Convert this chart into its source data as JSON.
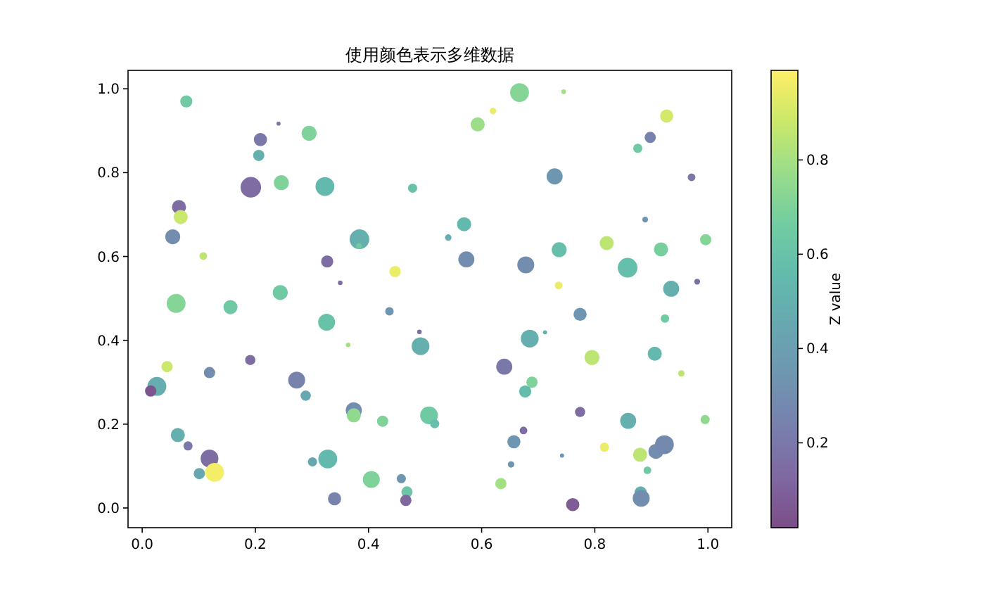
{
  "chart_data": {
    "type": "bubble",
    "title": "使用颜色表示多维数据",
    "clabel": "Z value",
    "xlim": [
      -0.025,
      1.042
    ],
    "ylim": [
      -0.047,
      1.044
    ],
    "xticks": [
      {
        "value": 0,
        "label": "0.0"
      },
      0.2,
      0.4,
      0.6,
      0.8,
      {
        "value": 1,
        "label": "1.0"
      }
    ],
    "yticks": [
      {
        "value": 0,
        "label": "0.0"
      },
      0.2,
      0.4,
      0.6,
      0.8,
      {
        "value": 1,
        "label": "1.0"
      }
    ],
    "clim": [
      0.02,
      0.99
    ],
    "cticks": [
      0.2,
      0.4,
      0.6,
      0.8
    ],
    "x": [
      0.078,
      0.241,
      0.209,
      0.295,
      0.206,
      0.192,
      0.246,
      0.323,
      0.478,
      0.065,
      0.068,
      0.054,
      0.384,
      0.383,
      0.108,
      0.327,
      0.447,
      0.35,
      0.06,
      0.156,
      0.244,
      0.667,
      0.745,
      0.62,
      0.593,
      0.927,
      0.898,
      0.876,
      0.729,
      0.971,
      0.569,
      0.541,
      0.889,
      0.573,
      0.678,
      0.737,
      0.821,
      0.917,
      0.996,
      0.858,
      0.736,
      0.935,
      0.981,
      0.437,
      0.326,
      0.364,
      0.49,
      0.492,
      0.044,
      0.191,
      0.119,
      0.026,
      0.015,
      0.273,
      0.289,
      0.374,
      0.374,
      0.425,
      0.507,
      0.517,
      0.063,
      0.081,
      0.119,
      0.328,
      0.301,
      0.101,
      0.128,
      0.405,
      0.458,
      0.468,
      0.466,
      0.34,
      0.774,
      0.924,
      0.685,
      0.712,
      0.795,
      0.906,
      0.953,
      0.64,
      0.689,
      0.677,
      0.774,
      0.859,
      0.995,
      0.674,
      0.657,
      0.742,
      0.817,
      0.88,
      0.908,
      0.923,
      0.652,
      0.893,
      0.634,
      0.881,
      0.882,
      0.761
    ],
    "values": [
      0.97,
      0.917,
      0.879,
      0.894,
      0.841,
      0.765,
      0.776,
      0.767,
      0.763,
      0.718,
      0.694,
      0.647,
      0.641,
      0.625,
      0.601,
      0.588,
      0.564,
      0.537,
      0.488,
      0.479,
      0.514,
      0.991,
      0.993,
      0.947,
      0.915,
      0.935,
      0.884,
      0.858,
      0.791,
      0.789,
      0.677,
      0.645,
      0.688,
      0.593,
      0.58,
      0.616,
      0.632,
      0.617,
      0.64,
      0.573,
      0.531,
      0.523,
      0.54,
      0.469,
      0.443,
      0.389,
      0.42,
      0.386,
      0.337,
      0.353,
      0.323,
      0.29,
      0.279,
      0.305,
      0.268,
      0.233,
      0.221,
      0.207,
      0.221,
      0.201,
      0.174,
      0.148,
      0.118,
      0.117,
      0.11,
      0.082,
      0.085,
      0.068,
      0.07,
      0.038,
      0.018,
      0.022,
      0.462,
      0.452,
      0.404,
      0.419,
      0.359,
      0.368,
      0.321,
      0.337,
      0.3,
      0.278,
      0.229,
      0.208,
      0.211,
      0.185,
      0.158,
      0.125,
      0.145,
      0.127,
      0.135,
      0.151,
      0.104,
      0.09,
      0.058,
      0.037,
      0.023,
      0.008
    ],
    "sizes": [
      0.35,
      0.04,
      0.41,
      0.53,
      0.3,
      1.0,
      0.53,
      0.84,
      0.2,
      0.47,
      0.47,
      0.53,
      0.92,
      0.08,
      0.14,
      0.35,
      0.3,
      0.05,
      0.84,
      0.47,
      0.53,
      0.84,
      0.05,
      0.1,
      0.47,
      0.41,
      0.3,
      0.2,
      0.61,
      0.14,
      0.47,
      0.1,
      0.08,
      0.61,
      0.68,
      0.53,
      0.47,
      0.47,
      0.3,
      0.92,
      0.14,
      0.61,
      0.08,
      0.17,
      0.68,
      0.05,
      0.05,
      0.75,
      0.3,
      0.25,
      0.3,
      0.84,
      0.3,
      0.68,
      0.25,
      0.61,
      0.47,
      0.3,
      0.75,
      0.2,
      0.47,
      0.2,
      0.75,
      0.84,
      0.2,
      0.3,
      0.84,
      0.68,
      0.2,
      0.3,
      0.3,
      0.41,
      0.41,
      0.17,
      0.75,
      0.04,
      0.53,
      0.47,
      0.1,
      0.61,
      0.3,
      0.35,
      0.25,
      0.61,
      0.2,
      0.14,
      0.41,
      0.04,
      0.2,
      0.47,
      0.53,
      0.84,
      0.1,
      0.14,
      0.3,
      0.35,
      0.68,
      0.41
    ],
    "cvalues": [
      0.65,
      0.2,
      0.2,
      0.7,
      0.5,
      0.15,
      0.7,
      0.55,
      0.6,
      0.15,
      0.88,
      0.3,
      0.5,
      0.65,
      0.85,
      0.15,
      0.95,
      0.15,
      0.72,
      0.65,
      0.65,
      0.72,
      0.8,
      0.95,
      0.78,
      0.9,
      0.25,
      0.65,
      0.35,
      0.2,
      0.55,
      0.5,
      0.35,
      0.3,
      0.3,
      0.58,
      0.85,
      0.68,
      0.72,
      0.58,
      0.95,
      0.5,
      0.15,
      0.35,
      0.6,
      0.8,
      0.15,
      0.5,
      0.88,
      0.15,
      0.3,
      0.48,
      0.05,
      0.25,
      0.45,
      0.3,
      0.75,
      0.7,
      0.65,
      0.58,
      0.5,
      0.2,
      0.15,
      0.55,
      0.45,
      0.45,
      0.97,
      0.7,
      0.35,
      0.62,
      0.12,
      0.25,
      0.35,
      0.65,
      0.5,
      0.5,
      0.85,
      0.55,
      0.85,
      0.2,
      0.7,
      0.57,
      0.15,
      0.5,
      0.75,
      0.15,
      0.35,
      0.35,
      0.95,
      0.85,
      0.3,
      0.28,
      0.35,
      0.65,
      0.8,
      0.5,
      0.3,
      0.08
    ]
  }
}
